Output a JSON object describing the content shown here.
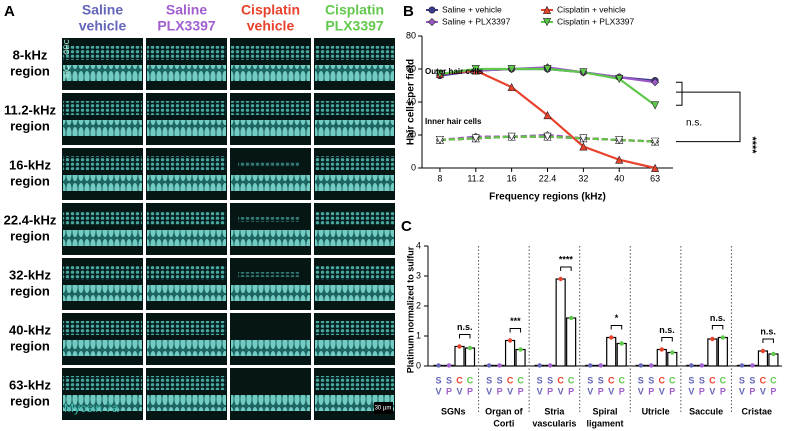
{
  "panel_a": {
    "letter": "A",
    "columns": [
      {
        "line1": "Saline",
        "line2": "vehicle",
        "color": "#6466b8"
      },
      {
        "line1": "Saline",
        "line2": "PLX3397",
        "color": "#a25fd0"
      },
      {
        "line1": "Cisplatin",
        "line2": "vehicle",
        "color": "#e8412c"
      },
      {
        "line1": "Cisplatin",
        "line2": "PLX3397",
        "color": "#62c94c"
      }
    ],
    "rows": [
      {
        "line1": "8-kHz",
        "line2": "region"
      },
      {
        "line1": "11.2-kHz",
        "line2": "region"
      },
      {
        "line1": "16-kHz",
        "line2": "region"
      },
      {
        "line1": "22.4-kHz",
        "line2": "region"
      },
      {
        "line1": "32-kHz",
        "line2": "region"
      },
      {
        "line1": "40-kHz",
        "line2": "region"
      },
      {
        "line1": "63-kHz",
        "line2": "region"
      }
    ],
    "stain": "Myosin 7a",
    "scale_bar": "30 µm",
    "ohc": "OHC",
    "ihc": "IHC"
  },
  "chart_data": [
    {
      "type": "line",
      "panel": "B",
      "y_label": "Hair cells per field",
      "x_label": "Frequency regions (kHz)",
      "categories": [
        "8",
        "11.2",
        "16",
        "22.4",
        "32",
        "40",
        "63"
      ],
      "ylim": [
        0,
        80
      ],
      "yticks": [
        0,
        20,
        40,
        60,
        80
      ],
      "annotations": {
        "outer": "Outer hair cells",
        "inner": "Inner hair cells",
        "outer_sig": "n.s.",
        "inner_sig": "****"
      },
      "series": [
        {
          "name": "Saline + vehicle",
          "color": "#3c3a8c",
          "values": [
            56,
            59,
            60,
            60,
            58,
            55,
            53
          ],
          "inner_values": [
            17,
            18,
            19,
            19,
            18,
            17,
            16
          ]
        },
        {
          "name": "Saline + PLX3397",
          "color": "#9b59c6",
          "values": [
            57,
            59,
            60,
            61,
            58,
            55,
            52
          ],
          "inner_values": [
            17,
            19,
            19,
            20,
            18,
            17,
            16
          ]
        },
        {
          "name": "Cisplatin + vehicle",
          "color": "#e8412c",
          "values": [
            57,
            59,
            49,
            32,
            13,
            5,
            0
          ],
          "inner_values": [
            17,
            18,
            19,
            19,
            18,
            17,
            16
          ]
        },
        {
          "name": "Cisplatin + PLX3397",
          "color": "#5ec84b",
          "values": [
            57,
            60,
            60,
            60,
            58,
            54,
            38
          ],
          "inner_values": [
            17,
            18,
            19,
            19,
            18,
            17,
            16
          ]
        }
      ]
    },
    {
      "type": "bar",
      "panel": "C",
      "y_label": "Platinum normalized to sulfur",
      "groups": [
        [
          "SGNs"
        ],
        [
          "Organ of",
          "Corti"
        ],
        [
          "Stria",
          "vascularis"
        ],
        [
          "Spiral",
          "ligament"
        ],
        [
          "Utricle"
        ],
        [
          "Saccule"
        ],
        [
          "Cristae"
        ]
      ],
      "ylim": [
        0,
        4
      ],
      "yticks": [
        0,
        1,
        2,
        3,
        4
      ],
      "significance": [
        "n.s.",
        "***",
        "****",
        "*",
        "n.s.",
        "n.s.",
        "n.s."
      ],
      "series": [
        {
          "top": "S",
          "bottom": "V",
          "top_color": "#6466b8",
          "bottom_color": "#6466b8",
          "color": "#6466b8",
          "values": [
            0.02,
            0.02,
            0.02,
            0.02,
            0.02,
            0.02,
            0.02
          ]
        },
        {
          "top": "S",
          "bottom": "P",
          "top_color": "#6466b8",
          "bottom_color": "#a25fd0",
          "color": "#a25fd0",
          "values": [
            0.02,
            0.02,
            0.02,
            0.02,
            0.02,
            0.02,
            0.02
          ]
        },
        {
          "top": "C",
          "bottom": "V",
          "top_color": "#e8412c",
          "bottom_color": "#6466b8",
          "color": "#e8412c",
          "values": [
            0.65,
            0.85,
            2.9,
            0.95,
            0.55,
            0.9,
            0.5
          ]
        },
        {
          "top": "C",
          "bottom": "P",
          "top_color": "#5ec84b",
          "bottom_color": "#a25fd0",
          "color": "#5ec84b",
          "values": [
            0.6,
            0.55,
            1.6,
            0.75,
            0.45,
            0.95,
            0.4
          ]
        }
      ]
    }
  ]
}
